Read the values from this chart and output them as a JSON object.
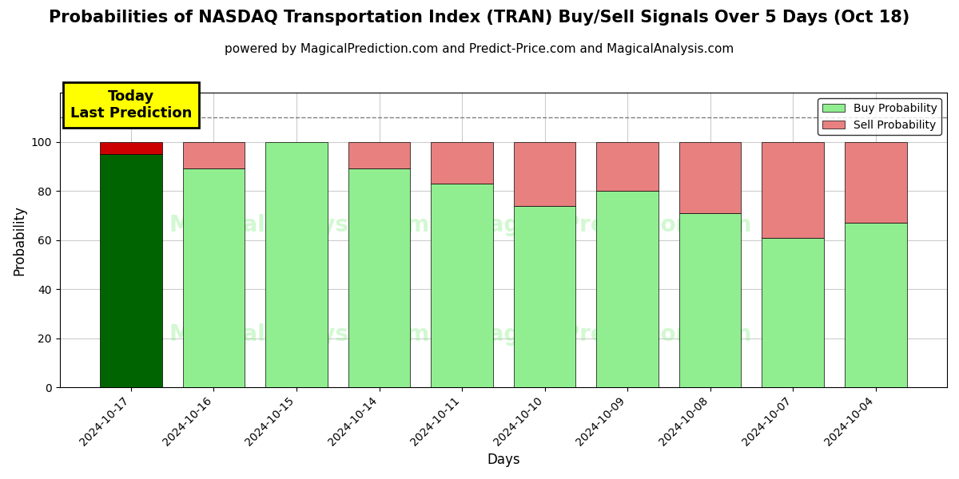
{
  "title": "Probabilities of NASDAQ Transportation Index (TRAN) Buy/Sell Signals Over 5 Days (Oct 18)",
  "subtitle": "powered by MagicalPrediction.com and Predict-Price.com and MagicalAnalysis.com",
  "xlabel": "Days",
  "ylabel": "Probability",
  "categories": [
    "2024-10-17",
    "2024-10-16",
    "2024-10-15",
    "2024-10-14",
    "2024-10-11",
    "2024-10-10",
    "2024-10-09",
    "2024-10-08",
    "2024-10-07",
    "2024-10-04"
  ],
  "buy_values": [
    95,
    89,
    100,
    89,
    83,
    74,
    80,
    71,
    61,
    67
  ],
  "sell_values": [
    5,
    11,
    0,
    11,
    17,
    26,
    20,
    29,
    39,
    33
  ],
  "today_bar_index": 0,
  "buy_color_today": "#006400",
  "buy_color_normal": "#90EE90",
  "sell_color": "#E88080",
  "sell_color_today": "#CC0000",
  "ylim": [
    0,
    120
  ],
  "yticks": [
    0,
    20,
    40,
    60,
    80,
    100
  ],
  "dashed_line_y": 110,
  "annotation_text": "Today\nLast Prediction",
  "background_color": "#ffffff",
  "grid_color": "#cccccc",
  "legend_buy_label": "Buy Probability",
  "legend_sell_label": "Sell Probability",
  "bar_width": 0.75,
  "title_fontsize": 15,
  "subtitle_fontsize": 11,
  "axis_label_fontsize": 12,
  "tick_fontsize": 10
}
